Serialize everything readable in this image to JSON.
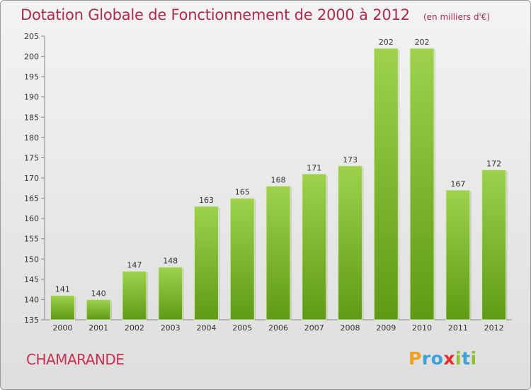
{
  "chart_data": {
    "type": "bar",
    "title": "Dotation Globale de Fonctionnement de 2000 à 2012",
    "subtitle": "(en milliers d'€)",
    "categories": [
      "2000",
      "2001",
      "2002",
      "2003",
      "2004",
      "2005",
      "2006",
      "2007",
      "2008",
      "2009",
      "2010",
      "2011",
      "2012"
    ],
    "values": [
      141,
      140,
      147,
      148,
      163,
      165,
      168,
      171,
      173,
      202,
      202,
      167,
      172
    ],
    "ylim": [
      135,
      205
    ],
    "yticks": [
      135,
      140,
      145,
      150,
      155,
      160,
      165,
      170,
      175,
      180,
      185,
      190,
      195,
      200,
      205
    ],
    "grid": false,
    "bar_color": "#7cb82f"
  },
  "commune": "CHAMARANDE",
  "logo": [
    "P",
    "r",
    "o",
    "x",
    "i",
    "t",
    "i"
  ]
}
